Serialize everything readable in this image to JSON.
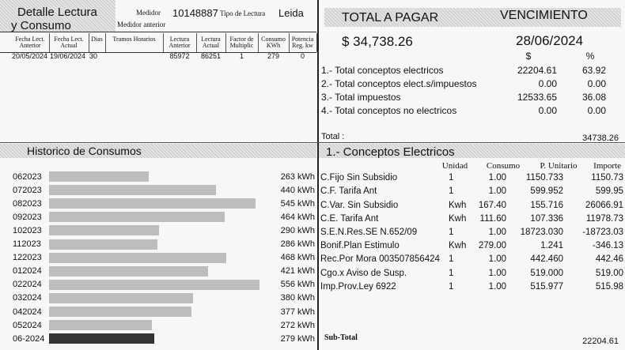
{
  "header": {
    "title_line1": "Detalle Lectura",
    "title_line2": "y Consumo",
    "medidor_label": "Medidor",
    "medidor": "10148887",
    "tipo_label": "Tipo de Lectura",
    "tipo": "Leida",
    "medidor_anterior_label": "Medidor anterior"
  },
  "reading": {
    "columns": [
      "Fecha Lect. Anterior",
      "Fecha Lect. Actual",
      "Dias",
      "Tramos Horarios",
      "Lectura Anterior",
      "Lectura Actual",
      "Factor de Multiplic",
      "Consumo KWh",
      "Potencia Reg. kw"
    ],
    "row": [
      "20/05/2024",
      "19/06/2024",
      "30",
      null,
      "85972",
      "86251",
      "1",
      "279",
      "0"
    ]
  },
  "summary": {
    "total_label": "TOTAL A PAGAR",
    "due_label": "VENCIMIENTO",
    "total": "$ 34,738.26",
    "due_date": "28/06/2024",
    "col_amount": "$",
    "col_pct": "%",
    "rows": [
      [
        "1.- Total conceptos electricos",
        "22204.61",
        "63.92"
      ],
      [
        "2.- Total conceptos elect.s/impuestos",
        "0.00",
        "0.00"
      ],
      [
        "3.- Total impuestos",
        "12533.65",
        "36.08"
      ],
      [
        "4.- Total conceptos no electricos",
        "0.00",
        "0.00"
      ]
    ],
    "total_row_label": "Total :",
    "total_row_value": "34738.26"
  },
  "history": {
    "title": "Historico de Consumos",
    "rows": [
      {
        "period": "062023",
        "kwh": 263,
        "label": "263 kWh"
      },
      {
        "period": "072023",
        "kwh": 440,
        "label": "440 kWh"
      },
      {
        "period": "082023",
        "kwh": 545,
        "label": "545 kWh"
      },
      {
        "period": "092023",
        "kwh": 464,
        "label": "464 kWh"
      },
      {
        "period": "102023",
        "kwh": 290,
        "label": "290 kWh"
      },
      {
        "period": "112023",
        "kwh": 286,
        "label": "286 kWh"
      },
      {
        "period": "122023",
        "kwh": 468,
        "label": "468 kWh"
      },
      {
        "period": "012024",
        "kwh": 421,
        "label": "421 kWh"
      },
      {
        "period": "022024",
        "kwh": 556,
        "label": "556 kWh"
      },
      {
        "period": "032024",
        "kwh": 380,
        "label": "380 kWh"
      },
      {
        "period": "042024",
        "kwh": 377,
        "label": "377 kWh"
      },
      {
        "period": "052024",
        "kwh": 272,
        "label": "272 kWh"
      },
      {
        "period": "06-2024",
        "kwh": 279,
        "label": "279 kWh"
      }
    ]
  },
  "concepts": {
    "title": "1.- Conceptos Electricos",
    "columns": [
      "Unidad",
      "Consumo",
      "P. Unitario",
      "Importe"
    ],
    "rows": [
      [
        "C.Fijo Sin Subsidio",
        "1",
        "1.00",
        "1150.733",
        "1150.73"
      ],
      [
        "C.F. Tarifa Ant",
        "1",
        "1.00",
        "599.952",
        "599.95"
      ],
      [
        "C.Var. Sin Subsidio",
        "Kwh",
        "167.40",
        "155.716",
        "26066.91"
      ],
      [
        "C.E. Tarifa Ant",
        "Kwh",
        "111.60",
        "107.336",
        "11978.73"
      ],
      [
        "S.E.N.Res.SE N.652/09",
        "1",
        "1.00",
        "18723.030",
        "-18723.03"
      ],
      [
        "Bonif.Plan Estimulo",
        "Kwh",
        "279.00",
        "1.241",
        "-346.13"
      ],
      [
        "Rec.Por Mora 003507856424",
        "1",
        "1.00",
        "442.460",
        "442.46"
      ],
      [
        "Cgo.x Aviso de Susp.",
        "1",
        "1.00",
        "519.000",
        "519.00"
      ],
      [
        "Imp.Prov.Ley 6922",
        "1",
        "1.00",
        "515.977",
        "515.98"
      ]
    ],
    "subtotal_label": "Sub-Total",
    "subtotal": "22204.61"
  }
}
